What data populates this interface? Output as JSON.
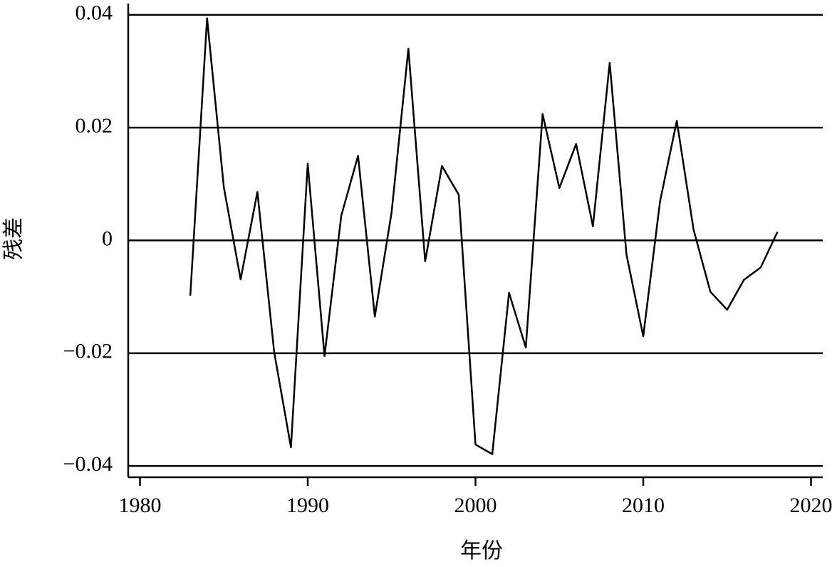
{
  "chart_data": {
    "type": "line",
    "x_label": "年份",
    "y_label": "残差",
    "x": [
      1983,
      1984,
      1985,
      1986,
      1987,
      1988,
      1989,
      1990,
      1991,
      1992,
      1993,
      1994,
      1995,
      1996,
      1997,
      1998,
      1999,
      2000,
      2001,
      2002,
      2003,
      2004,
      2005,
      2006,
      2007,
      2008,
      2009,
      2010,
      2011,
      2012,
      2013,
      2014,
      2015,
      2016,
      2017,
      2018
    ],
    "series": [
      {
        "color": "#000000",
        "values": [
          -0.0098,
          0.0394,
          0.0094,
          -0.0069,
          0.0086,
          -0.0198,
          -0.0367,
          0.0136,
          -0.0205,
          0.0044,
          0.015,
          -0.0135,
          0.005,
          0.034,
          -0.0037,
          0.0132,
          0.0081,
          -0.0362,
          -0.0379,
          -0.0093,
          -0.019,
          0.0224,
          0.0093,
          0.0171,
          0.0025,
          0.0315,
          -0.0025,
          -0.017,
          0.0069,
          0.0212,
          0.0019,
          -0.0091,
          -0.0123,
          -0.007,
          -0.0048,
          0.0015
        ]
      }
    ],
    "xlim": [
      1979.3,
      2020.7
    ],
    "xticks": [
      1980,
      1990,
      2000,
      2010,
      2020
    ],
    "ylim": [
      -0.042,
      0.042
    ],
    "yticks": [
      0.04,
      0.02,
      0,
      {
        "value": -0.02,
        "label": "−0.02"
      },
      {
        "value": -0.04,
        "label": "−0.04"
      }
    ],
    "grid": true
  }
}
